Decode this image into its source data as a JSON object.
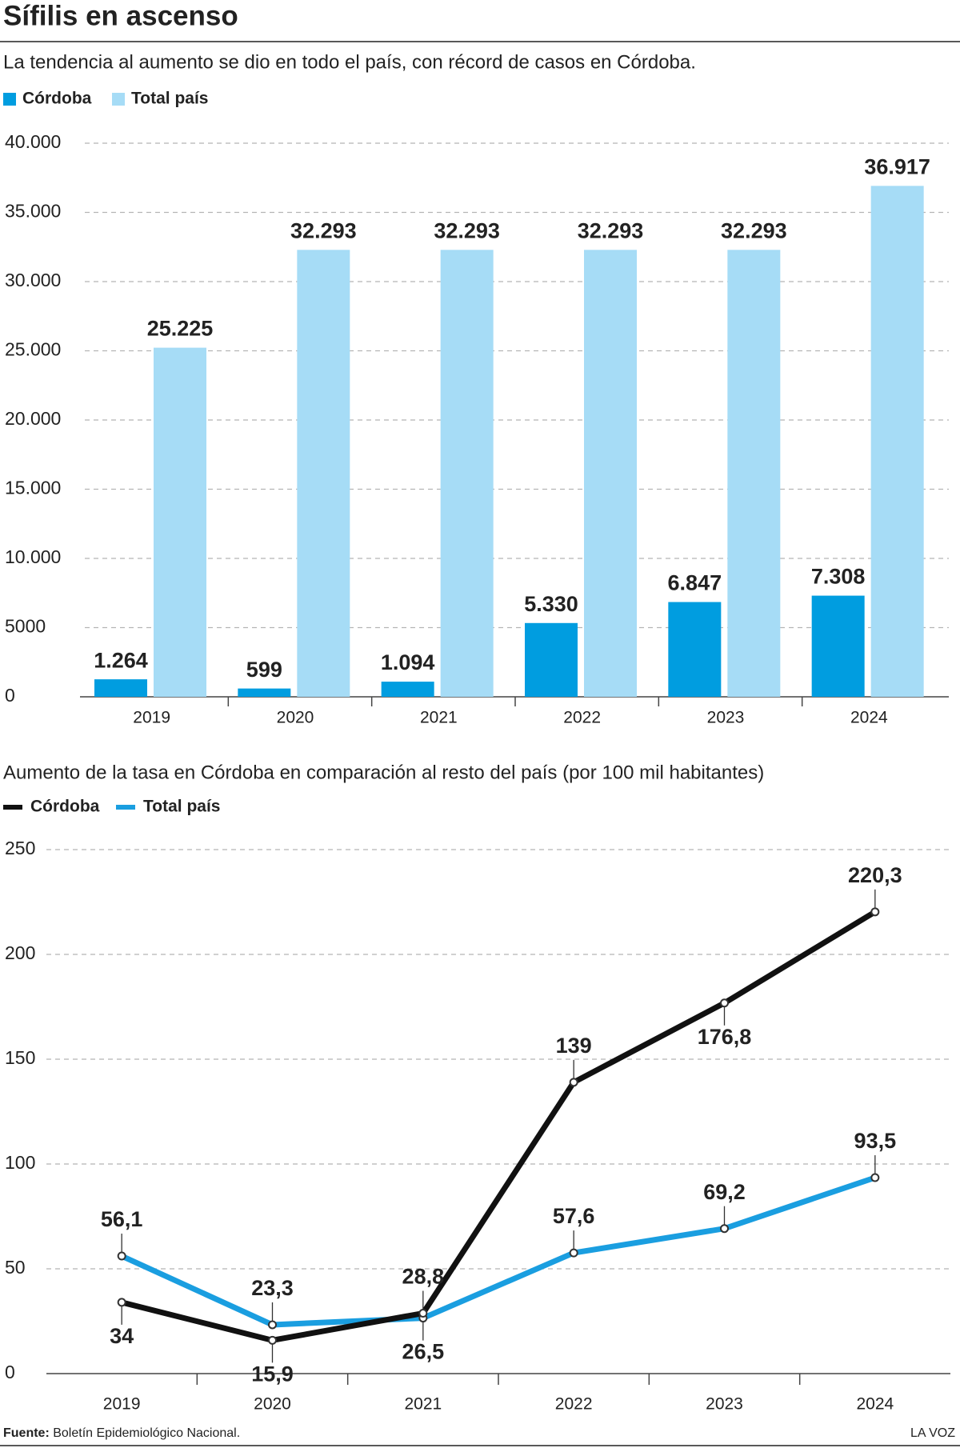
{
  "header": {
    "title": "Sífilis en ascenso"
  },
  "chart_data": [
    {
      "type": "bar",
      "subtitle": "La tendencia al aumento se dio en todo el país, con récord de casos en Córdoba.",
      "categories": [
        "2019",
        "2020",
        "2021",
        "2022",
        "2023",
        "2024"
      ],
      "series": [
        {
          "name": "Córdoba",
          "color": "#009de0",
          "values": [
            1264,
            599,
            1094,
            5330,
            6847,
            7308
          ],
          "value_labels": [
            "1.264",
            "599",
            "1.094",
            "5.330",
            "6.847",
            "7.308"
          ]
        },
        {
          "name": "Total país",
          "color": "#a6dcf6",
          "values": [
            25225,
            32293,
            32293,
            32293,
            32293,
            36917
          ],
          "value_labels": [
            "25.225",
            "32.293",
            "32.293",
            "32.293",
            "32.293",
            "36.917"
          ]
        }
      ],
      "ylim": [
        0,
        40000
      ],
      "yticks": [
        0,
        5000,
        {
          "value": 10000,
          "label": "10.000"
        },
        {
          "value": 15000,
          "label": "15.000"
        },
        {
          "value": 20000,
          "label": "20.000"
        },
        {
          "value": 25000,
          "label": "25.000"
        },
        {
          "value": 30000,
          "label": "30.000"
        },
        {
          "value": 35000,
          "label": "35.000"
        },
        {
          "value": 40000,
          "label": "40.000"
        }
      ],
      "grid": true
    },
    {
      "type": "line",
      "title": "Aumento de la tasa en Córdoba en comparación al resto del país (por 100 mil habitantes)",
      "categories": [
        "2019",
        "2020",
        "2021",
        "2022",
        "2023",
        "2024"
      ],
      "series": [
        {
          "name": "Córdoba",
          "color": "#111111",
          "values": [
            34,
            15.9,
            28.8,
            139,
            176.8,
            220.3
          ],
          "value_labels": [
            "34",
            "15,9",
            "28,8",
            "139",
            "176,8",
            "220,3"
          ]
        },
        {
          "name": "Total país",
          "color": "#1a9ee0",
          "values": [
            56.1,
            23.3,
            26.5,
            57.6,
            69.2,
            93.5
          ],
          "value_labels": [
            "56,1",
            "23,3",
            "26,5",
            "57,6",
            "69,2",
            "93,5"
          ]
        }
      ],
      "ylim": [
        0,
        250
      ],
      "yticks": [
        0,
        50,
        100,
        150,
        200,
        250
      ],
      "grid": true
    }
  ],
  "footer": {
    "source_label": "Fuente:",
    "source": "Boletín Epidemiológico Nacional.",
    "brand": "LA VOZ"
  }
}
